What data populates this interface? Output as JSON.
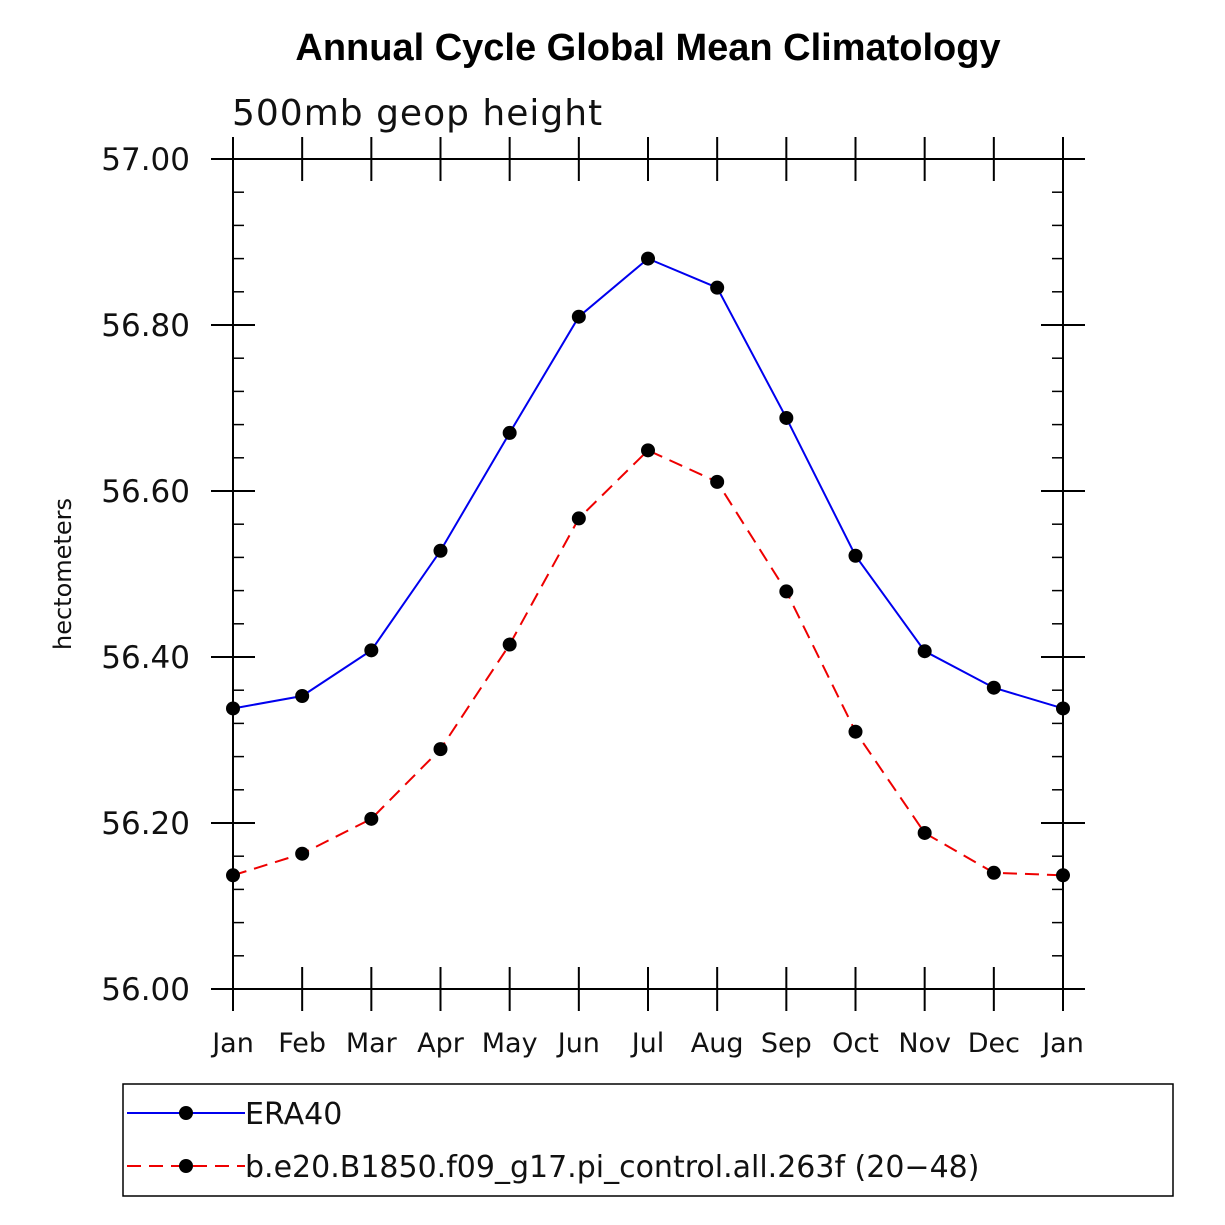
{
  "chart_data": {
    "type": "line",
    "title": "Annual Cycle Global Mean Climatology",
    "subtitle": "500mb geop height",
    "xlabel": "",
    "ylabel": "hectometers",
    "categories": [
      "Jan",
      "Feb",
      "Mar",
      "Apr",
      "May",
      "Jun",
      "Jul",
      "Aug",
      "Sep",
      "Oct",
      "Nov",
      "Dec",
      "Jan"
    ],
    "ylim": [
      56.0,
      57.0
    ],
    "yticks": [
      "56.00",
      "56.20",
      "56.40",
      "56.60",
      "56.80",
      "57.00"
    ],
    "grid": false,
    "legend_position": "bottom",
    "series": [
      {
        "name": "ERA40",
        "color": "#0000ee",
        "dash": "solid",
        "marker": "filled-circle",
        "values": [
          56.338,
          56.353,
          56.408,
          56.528,
          56.67,
          56.81,
          56.88,
          56.845,
          56.688,
          56.522,
          56.407,
          56.363,
          56.338
        ]
      },
      {
        "name": "b.e20.B1850.f09_g17.pi_control.all.263f (20−48)",
        "color": "#ee0000",
        "dash": "dashed",
        "marker": "filled-circle",
        "values": [
          56.137,
          56.163,
          56.205,
          56.289,
          56.415,
          56.567,
          56.649,
          56.611,
          56.479,
          56.31,
          56.188,
          56.14,
          56.137
        ]
      }
    ]
  }
}
